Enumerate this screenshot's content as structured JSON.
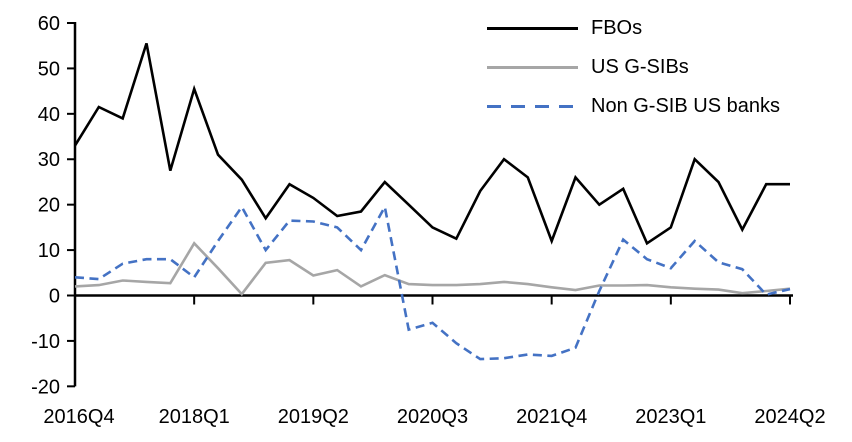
{
  "chart_data": {
    "type": "line",
    "title": "",
    "grid": false,
    "legend_position": "top-right",
    "y_axis": {
      "min": -20,
      "max": 60,
      "step": 10,
      "tick_labels": [
        "-20",
        "-10",
        "0",
        "10",
        "20",
        "30",
        "40",
        "50",
        "60"
      ]
    },
    "x_tick_labels": [
      "2016Q4",
      "2018Q1",
      "2019Q2",
      "2020Q3",
      "2021Q4",
      "2023Q1",
      "2024Q2"
    ],
    "quarters": [
      "2016Q4",
      "2017Q1",
      "2017Q2",
      "2017Q3",
      "2017Q4",
      "2018Q1",
      "2018Q2",
      "2018Q3",
      "2018Q4",
      "2019Q1",
      "2019Q2",
      "2019Q3",
      "2019Q4",
      "2020Q1",
      "2020Q2",
      "2020Q3",
      "2020Q4",
      "2021Q1",
      "2021Q2",
      "2021Q3",
      "2021Q4",
      "2022Q1",
      "2022Q2",
      "2022Q3",
      "2022Q4",
      "2023Q1",
      "2023Q2",
      "2023Q3",
      "2023Q4",
      "2024Q1",
      "2024Q2"
    ],
    "series": [
      {
        "name": "FBOs",
        "color": "#000000",
        "style": "solid",
        "values": [
          33,
          41.5,
          39,
          55.5,
          27.5,
          45.5,
          31,
          25.5,
          17,
          24.5,
          21.5,
          17.5,
          18.5,
          25,
          20,
          15,
          12.5,
          23,
          30,
          26,
          12,
          26,
          20,
          23.5,
          11.5,
          15,
          30,
          25,
          14.5,
          24.5,
          24.5
        ]
      },
      {
        "name": "US G-SIBs",
        "color": "#a6a6a6",
        "style": "solid",
        "values": [
          2,
          2.3,
          3.3,
          3,
          2.7,
          11.5,
          6,
          0.3,
          7.2,
          7.8,
          4.4,
          5.6,
          2,
          4.5,
          2.5,
          2.3,
          2.3,
          2.5,
          3,
          2.5,
          1.8,
          1.2,
          2.2,
          2.2,
          2.3,
          1.8,
          1.5,
          1.3,
          0.5,
          1,
          1.5
        ]
      },
      {
        "name": "Non G-SIB US banks",
        "color": "#4472c4",
        "style": "dashed",
        "values": [
          4,
          3.6,
          7,
          8,
          8,
          4,
          12,
          19.5,
          10,
          16.5,
          16.3,
          15,
          10,
          19.5,
          -7.5,
          -6,
          -10.5,
          -14,
          -13.8,
          -13,
          -13.3,
          -11.5,
          1,
          12.3,
          8,
          6,
          12,
          7.3,
          5.8,
          0.2,
          1.4
        ]
      }
    ]
  }
}
